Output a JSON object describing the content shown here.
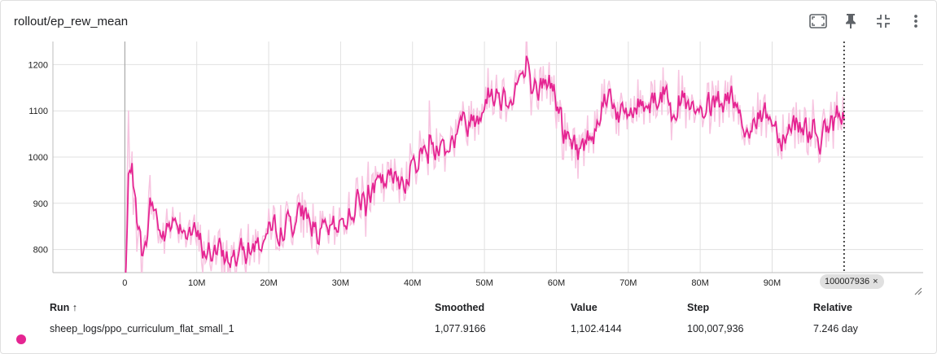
{
  "card": {
    "title": "rollout/ep_rew_mean"
  },
  "toolbar": {
    "icons": [
      "fullscreen-icon",
      "pin-icon",
      "fit-to-data-icon",
      "more-vert-icon"
    ]
  },
  "colors": {
    "series": "#e52592",
    "series_raw": "#f7c4e0",
    "grid": "#e0e0e0",
    "cursor": "#212121"
  },
  "chart_data": {
    "type": "line",
    "xlabel": "",
    "ylabel": "",
    "x_ticks": [
      "0",
      "10M",
      "20M",
      "30M",
      "40M",
      "50M",
      "60M",
      "70M",
      "80M",
      "90M"
    ],
    "x_tick_values": [
      0,
      10000000,
      20000000,
      30000000,
      40000000,
      50000000,
      60000000,
      70000000,
      80000000,
      90000000
    ],
    "y_ticks": [
      "800",
      "900",
      "1000",
      "1100",
      "1200"
    ],
    "y_tick_values": [
      800,
      900,
      1000,
      1100,
      1200
    ],
    "xlim": [
      -10000000,
      111000000
    ],
    "ylim": [
      750,
      1250
    ],
    "grid": true,
    "cursor_step": "100007936",
    "series": [
      {
        "name": "sheep_logs/ppo_curriculum_flat_small_1",
        "smoothed_anchor_x": [
          0,
          500000,
          1500000,
          2500000,
          3500000,
          5000000,
          7000000,
          9000000,
          11000000,
          13000000,
          15000000,
          17000000,
          19000000,
          21000000,
          23000000,
          25000000,
          27000000,
          29000000,
          31000000,
          33000000,
          35000000,
          37000000,
          39000000,
          41000000,
          43000000,
          45000000,
          47000000,
          49000000,
          51000000,
          53000000,
          55000000,
          57000000,
          59000000,
          61000000,
          63000000,
          65000000,
          67000000,
          69000000,
          71000000,
          73000000,
          75000000,
          77000000,
          79000000,
          81000000,
          83000000,
          85000000,
          87000000,
          89000000,
          91000000,
          93000000,
          95000000,
          97000000,
          99000000,
          100007936
        ],
        "smoothed_anchor_y": [
          700,
          1060,
          860,
          760,
          920,
          820,
          870,
          840,
          800,
          790,
          780,
          800,
          820,
          850,
          860,
          880,
          830,
          840,
          880,
          920,
          930,
          950,
          960,
          1010,
          1020,
          1030,
          1070,
          1100,
          1150,
          1130,
          1180,
          1140,
          1170,
          1050,
          1010,
          1060,
          1150,
          1080,
          1110,
          1130,
          1140,
          1130,
          1080,
          1100,
          1120,
          1090,
          1060,
          1100,
          1050,
          1080,
          1060,
          1040,
          1090,
          1077.9166
        ]
      }
    ]
  },
  "table": {
    "headers": {
      "run": "Run ↑",
      "smoothed": "Smoothed",
      "value": "Value",
      "step": "Step",
      "relative": "Relative"
    },
    "rows": [
      {
        "run": "sheep_logs/ppo_curriculum_flat_small_1",
        "smoothed": "1,077.9166",
        "value": "1,102.4144",
        "step": "100,007,936",
        "relative": "7.246 day",
        "color": "#e52592"
      }
    ]
  }
}
